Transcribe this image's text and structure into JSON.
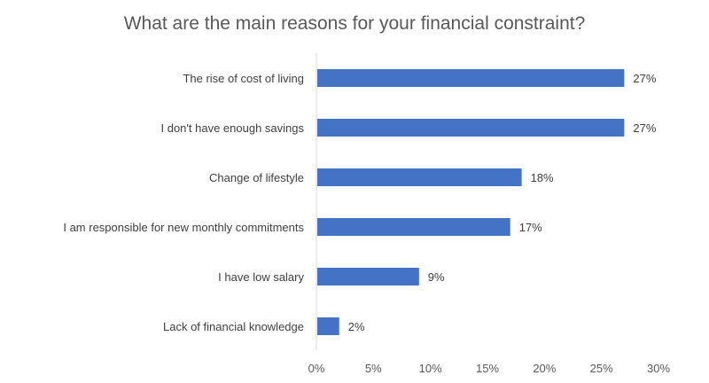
{
  "chart_data": {
    "type": "bar",
    "orientation": "horizontal",
    "title": "What are the main reasons for your financial constraint?",
    "categories": [
      "The rise of cost of living",
      "I don't have enough savings",
      "Change of lifestyle",
      "I am responsible for new monthly commitments",
      "I have low salary",
      "Lack of financial knowledge"
    ],
    "values": [
      27,
      27,
      18,
      17,
      9,
      2
    ],
    "data_labels": [
      "27%",
      "27%",
      "18%",
      "17%",
      "9%",
      "2%"
    ],
    "xlabel": "",
    "ylabel": "",
    "xlim": [
      0,
      30
    ],
    "x_ticks": [
      0,
      5,
      10,
      15,
      20,
      25,
      30
    ],
    "x_tick_labels": [
      "0%",
      "5%",
      "10%",
      "15%",
      "20%",
      "25%",
      "30%"
    ],
    "grid": false,
    "legend": "none",
    "bar_color": "#4472C4"
  }
}
